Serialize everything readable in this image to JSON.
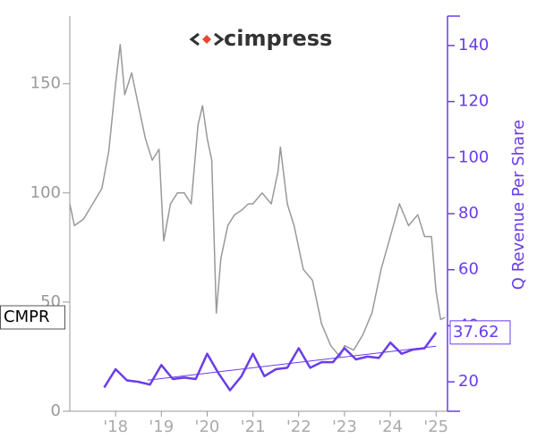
{
  "chart_data": {
    "type": "line",
    "logo": "cimpress",
    "xlim": [
      2017.0,
      2025.25
    ],
    "xticks": [
      {
        "value": 2018,
        "label": "'18"
      },
      {
        "value": 2019,
        "label": "'19"
      },
      {
        "value": 2020,
        "label": "'20"
      },
      {
        "value": 2021,
        "label": "'21"
      },
      {
        "value": 2022,
        "label": "'22"
      },
      {
        "value": 2023,
        "label": "'23"
      },
      {
        "value": 2024,
        "label": "'24"
      },
      {
        "value": 2025,
        "label": "'25"
      }
    ],
    "ylim": [
      0,
      181
    ],
    "yticks": [
      0,
      50,
      100,
      150
    ],
    "y2lim": [
      9.5,
      150.5
    ],
    "y2ticks": [
      20,
      40,
      60,
      80,
      100,
      120,
      140
    ],
    "y2label": "Q Revenue Per Share",
    "series": [
      {
        "name": "CMPR",
        "color": "#999999",
        "x": [
          2017.0,
          2017.1,
          2017.3,
          2017.5,
          2017.7,
          2017.85,
          2018.0,
          2018.1,
          2018.2,
          2018.35,
          2018.5,
          2018.65,
          2018.8,
          2018.95,
          2019.05,
          2019.2,
          2019.35,
          2019.5,
          2019.65,
          2019.8,
          2019.9,
          2020.0,
          2020.1,
          2020.2,
          2020.3,
          2020.45,
          2020.6,
          2020.75,
          2020.9,
          2021.0,
          2021.2,
          2021.4,
          2021.55,
          2021.6,
          2021.75,
          2021.9,
          2022.1,
          2022.3,
          2022.5,
          2022.7,
          2022.9,
          2023.0,
          2023.2,
          2023.4,
          2023.6,
          2023.8,
          2024.0,
          2024.2,
          2024.4,
          2024.6,
          2024.75,
          2024.9,
          2025.0,
          2025.1,
          2025.2
        ],
        "values": [
          95,
          85,
          88,
          95,
          102,
          119,
          150,
          168,
          145,
          155,
          140,
          125,
          115,
          120,
          78,
          95,
          100,
          100,
          95,
          131,
          140,
          125,
          115,
          45,
          70,
          85,
          90,
          92,
          95,
          95,
          100,
          95,
          110,
          121,
          95,
          85,
          65,
          60,
          40,
          30,
          25,
          30,
          28,
          35,
          45,
          65,
          80,
          95,
          85,
          90,
          80,
          80,
          55,
          42,
          43
        ]
      },
      {
        "color": "#6a3de8",
        "axis": "y2",
        "x": [
          2017.75,
          2018.0,
          2018.25,
          2018.5,
          2018.75,
          2019.0,
          2019.25,
          2019.5,
          2019.75,
          2020.0,
          2020.25,
          2020.5,
          2020.75,
          2021.0,
          2021.25,
          2021.5,
          2021.75,
          2022.0,
          2022.25,
          2022.5,
          2022.75,
          2023.0,
          2023.25,
          2023.5,
          2023.75,
          2024.0,
          2024.25,
          2024.5,
          2024.75,
          2025.0
        ],
        "values": [
          18,
          24.5,
          20.5,
          20,
          19,
          26,
          21,
          21.5,
          21,
          30,
          23,
          17,
          22,
          30,
          22,
          24.5,
          25,
          32,
          25,
          27,
          27,
          32,
          28,
          29,
          28.5,
          34,
          30,
          31.5,
          32,
          37.62
        ]
      },
      {
        "color": "#6a3de8",
        "axis": "y2",
        "x": [
          2018.7,
          2025.0
        ],
        "values": [
          20.6,
          32.7
        ]
      }
    ]
  }
}
